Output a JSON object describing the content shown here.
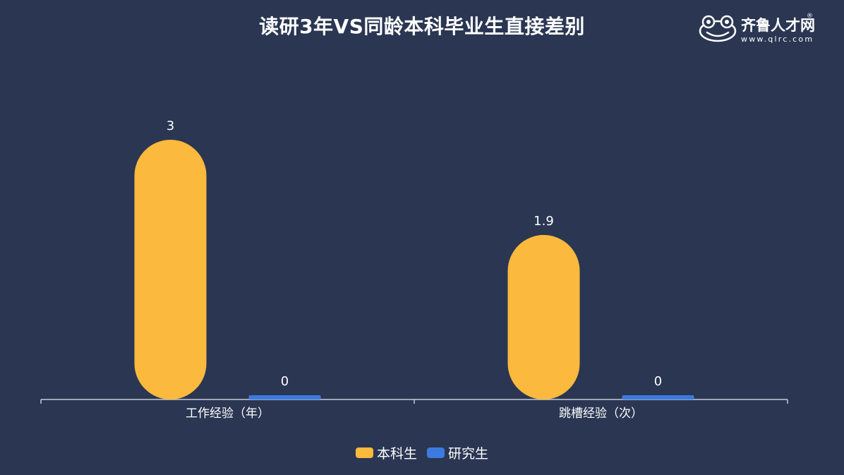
{
  "chart_data": {
    "type": "bar",
    "title": "读研3年VS同龄本科毕业生直接差别",
    "categories": [
      "工作经验（年）",
      "跳槽经验（次）"
    ],
    "series": [
      {
        "name": "本科生",
        "values": [
          3,
          1.9
        ],
        "value_labels": [
          "3",
          "1.9"
        ],
        "color": "#fbb93d"
      },
      {
        "name": "研究生",
        "values": [
          0,
          0
        ],
        "value_labels": [
          "0",
          "0"
        ],
        "color": "#3b7be0"
      }
    ],
    "xlabel": "",
    "ylabel": "",
    "ylim": [
      0,
      3
    ],
    "grid": false,
    "legend": "bottom-center"
  },
  "logo": {
    "name": "齐鲁人才网",
    "reg": "®",
    "url": "www.qlrc.com",
    "icon": "frog-logo-icon"
  }
}
